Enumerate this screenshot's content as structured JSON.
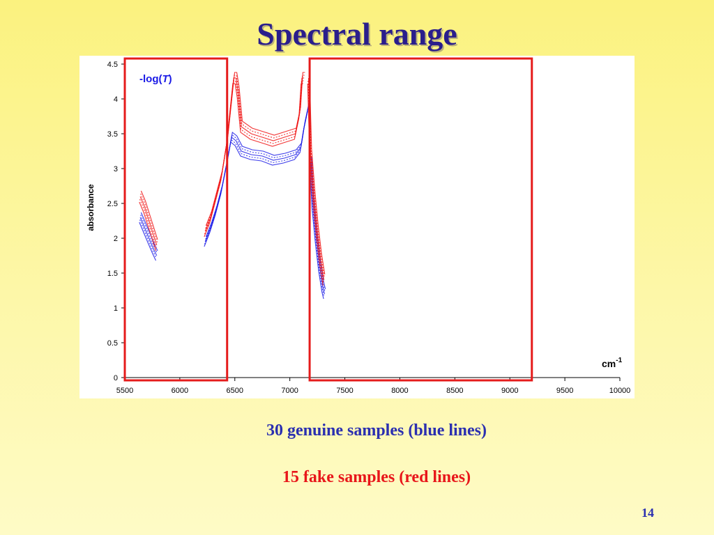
{
  "slide": {
    "title": "Spectral range",
    "caption_genuine": "30 genuine samples (blue lines)",
    "caption_fake": "15 fake samples  (red lines)",
    "page_number": "14"
  },
  "colors": {
    "title": "#2a1e8c",
    "caption_genuine": "#2b2fb0",
    "caption_fake": "#e8161a",
    "genuine_lines": "#1a1ae6",
    "fake_lines": "#f01010",
    "highlight_box": "#e51b1b"
  },
  "chart_data": {
    "type": "line",
    "ylabel": "absorbance",
    "annotation_label": "-log(T)",
    "unit_label": "cm-1",
    "xlim": [
      5500,
      10000
    ],
    "ylim": [
      0,
      4.5
    ],
    "x_ticks": [
      "5500",
      "6000",
      "6500",
      "7000",
      "7500",
      "8000",
      "8500",
      "9000",
      "9500",
      "10000"
    ],
    "y_ticks": [
      "0",
      "0.5",
      "1",
      "1.5",
      "2",
      "2.5",
      "3",
      "3.5",
      "4",
      "4.5"
    ],
    "grid": false,
    "highlight_regions": [
      [
        5500,
        6430
      ],
      [
        7180,
        9200
      ]
    ],
    "series": [
      {
        "group": "genuine",
        "segments": [
          {
            "x": [
              5640,
              5680,
              5720,
              5760,
              5790
            ],
            "y": [
              2.3,
              2.15,
              2.0,
              1.85,
              1.75
            ]
          },
          {
            "x": [
              6230,
              6280,
              6330,
              6380,
              6430,
              6470,
              6510,
              6560,
              6650,
              6750,
              6850,
              6950,
              7050,
              7100,
              7130,
              7150,
              7170
            ],
            "y": [
              1.95,
              2.15,
              2.4,
              2.7,
              3.1,
              3.45,
              3.4,
              3.25,
              3.2,
              3.18,
              3.12,
              3.15,
              3.2,
              3.3,
              3.6,
              3.75,
              3.9
            ]
          },
          {
            "x": [
              7190,
              7210,
              7240,
              7270,
              7300,
              7315
            ],
            "y": [
              3.1,
              2.5,
              2.0,
              1.6,
              1.3,
              1.2
            ]
          }
        ]
      },
      {
        "group": "fake",
        "segments": [
          {
            "x": [
              5640,
              5680,
              5720,
              5760,
              5790
            ],
            "y": [
              2.6,
              2.45,
              2.25,
              2.05,
              1.9
            ]
          },
          {
            "x": [
              6230,
              6280,
              6330,
              6380,
              6430,
              6470,
              6490,
              6510,
              6530,
              6560,
              6650,
              6750,
              6850,
              6950,
              7050,
              7090,
              7110,
              7130
            ],
            "y": [
              2.1,
              2.3,
              2.6,
              2.9,
              3.4,
              4.0,
              4.3,
              4.3,
              4.1,
              3.6,
              3.5,
              3.45,
              3.4,
              3.45,
              3.5,
              3.8,
              4.3,
              4.3
            ]
          },
          {
            "x": [
              7170,
              7190,
              7220,
              7250,
              7280,
              7310
            ],
            "y": [
              4.3,
              3.2,
              2.6,
              2.1,
              1.7,
              1.4
            ]
          }
        ]
      }
    ]
  }
}
